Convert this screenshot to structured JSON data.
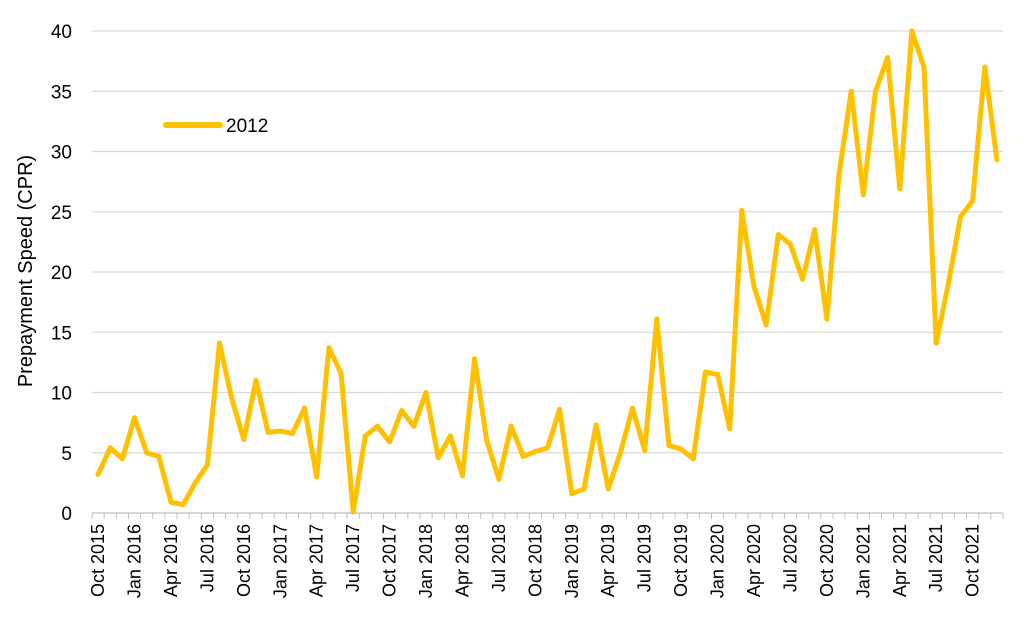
{
  "chart_data": {
    "type": "line",
    "title": "",
    "xlabel": "",
    "ylabel": "Prepayment Speed (CPR)",
    "ylim": [
      0,
      40
    ],
    "yticks": [
      0,
      5,
      10,
      15,
      20,
      25,
      30,
      35,
      40
    ],
    "grid": true,
    "legend_position": "top-left",
    "x_tick_labels": [
      "Oct 2015",
      "Jan 2016",
      "Apr 2016",
      "Jul 2016",
      "Oct 2016",
      "Jan 2017",
      "Apr 2017",
      "Jul 2017",
      "Oct 2017",
      "Jan 2018",
      "Apr 2018",
      "Jul 2018",
      "Oct 2018",
      "Jan 2019",
      "Apr 2019",
      "Jul 2019",
      "Oct 2019",
      "Jan 2020",
      "Apr 2020",
      "Jul 2020",
      "Oct 2020",
      "Jan 2021",
      "Apr 2021",
      "Jul 2021",
      "Oct 2021"
    ],
    "x": [
      "Oct 2015",
      "Nov 2015",
      "Dec 2015",
      "Jan 2016",
      "Feb 2016",
      "Mar 2016",
      "Apr 2016",
      "May 2016",
      "Jun 2016",
      "Jul 2016",
      "Aug 2016",
      "Sep 2016",
      "Oct 2016",
      "Nov 2016",
      "Dec 2016",
      "Jan 2017",
      "Feb 2017",
      "Mar 2017",
      "Apr 2017",
      "May 2017",
      "Jun 2017",
      "Jul 2017",
      "Aug 2017",
      "Sep 2017",
      "Oct 2017",
      "Nov 2017",
      "Dec 2017",
      "Jan 2018",
      "Feb 2018",
      "Mar 2018",
      "Apr 2018",
      "May 2018",
      "Jun 2018",
      "Jul 2018",
      "Aug 2018",
      "Sep 2018",
      "Oct 2018",
      "Nov 2018",
      "Dec 2018",
      "Jan 2019",
      "Feb 2019",
      "Mar 2019",
      "Apr 2019",
      "May 2019",
      "Jun 2019",
      "Jul 2019",
      "Aug 2019",
      "Sep 2019",
      "Oct 2019",
      "Nov 2019",
      "Dec 2019",
      "Jan 2020",
      "Feb 2020",
      "Mar 2020",
      "Apr 2020",
      "May 2020",
      "Jun 2020",
      "Jul 2020",
      "Aug 2020",
      "Sep 2020",
      "Oct 2020",
      "Nov 2020",
      "Dec 2020",
      "Jan 2021",
      "Feb 2021",
      "Mar 2021",
      "Apr 2021",
      "May 2021",
      "Jun 2021",
      "Jul 2021",
      "Aug 2021",
      "Sep 2021",
      "Oct 2021",
      "Nov 2021",
      "Dec 2021"
    ],
    "series": [
      {
        "name": "2012",
        "color": "#FFC000",
        "values": [
          3.2,
          5.4,
          4.5,
          7.9,
          5.0,
          4.7,
          0.9,
          0.7,
          2.5,
          4.0,
          14.1,
          9.5,
          6.1,
          11.0,
          6.7,
          6.8,
          6.6,
          8.7,
          3.0,
          13.7,
          11.6,
          0.1,
          6.4,
          7.2,
          5.9,
          8.5,
          7.2,
          10.0,
          4.6,
          6.4,
          3.1,
          12.8,
          6.0,
          2.8,
          7.2,
          4.7,
          5.1,
          5.4,
          8.6,
          1.6,
          2.0,
          7.3,
          2.0,
          5.0,
          8.7,
          5.2,
          16.1,
          5.6,
          5.3,
          4.5,
          11.7,
          11.5,
          7.0,
          25.1,
          18.8,
          15.6,
          23.1,
          22.3,
          19.4,
          23.5,
          16.1,
          28.1,
          35.0,
          26.4,
          35.0,
          37.8,
          26.9,
          40.0,
          37.0,
          14.1,
          19.0,
          24.6,
          25.9,
          37.0,
          29.3
        ]
      }
    ]
  }
}
